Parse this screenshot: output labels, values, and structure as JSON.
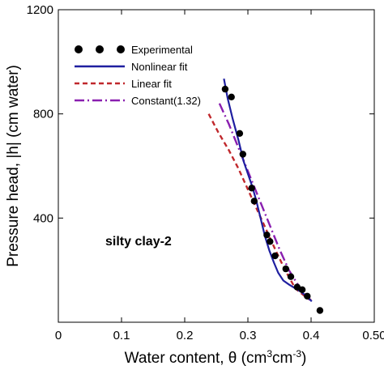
{
  "chart_data": {
    "type": "line",
    "title": "",
    "xlabel": "Water content, θ (cm3cm-3)",
    "xlabel_parts": {
      "base": "Water content, θ (cm",
      "sup1": "3",
      "mid": "cm",
      "sup2": "-3",
      "end": ")"
    },
    "ylabel": "Pressure head, |h| (cm water)",
    "xlim": [
      0,
      0.5
    ],
    "ylim": [
      0,
      1200
    ],
    "x_ticks": [
      0,
      0.1,
      0.2,
      0.3,
      0.4,
      0.5
    ],
    "x_tick_labels": [
      "0",
      "0.1",
      "0.2",
      "0.3",
      "0.4",
      "0.50"
    ],
    "y_ticks": [
      400,
      800,
      1200
    ],
    "y_tick_labels": [
      "400",
      "800",
      "1200"
    ],
    "annotation": "silty clay-2",
    "legend_placement": "top-left",
    "grid": false,
    "series": [
      {
        "name": "Experimental",
        "kind": "scatter",
        "color": "#000000",
        "x": [
          0.264,
          0.274,
          0.287,
          0.292,
          0.306,
          0.31,
          0.33,
          0.335,
          0.343,
          0.36,
          0.368,
          0.378,
          0.386,
          0.394,
          0.414
        ],
        "y": [
          895,
          865,
          725,
          645,
          515,
          465,
          335,
          310,
          255,
          205,
          175,
          135,
          125,
          100,
          45
        ]
      },
      {
        "name": "Nonlinear fit",
        "kind": "line",
        "color": "#1f1fa0",
        "dash": "solid",
        "x": [
          0.262,
          0.268,
          0.276,
          0.285,
          0.293,
          0.3,
          0.307,
          0.313,
          0.32,
          0.327,
          0.334,
          0.341,
          0.348,
          0.356,
          0.365,
          0.375,
          0.385,
          0.395,
          0.401
        ],
        "y": [
          935,
          860,
          780,
          700,
          620,
          570,
          520,
          470,
          400,
          330,
          275,
          230,
          190,
          160,
          145,
          130,
          115,
          95,
          80
        ]
      },
      {
        "name": "Linear fit",
        "kind": "line",
        "color": "#c0282c",
        "dash": "short",
        "x": [
          0.238,
          0.253,
          0.27,
          0.285,
          0.3,
          0.315,
          0.33,
          0.345,
          0.36,
          0.375,
          0.39,
          0.4
        ],
        "y": [
          800,
          730,
          660,
          590,
          510,
          430,
          350,
          270,
          195,
          130,
          100,
          85
        ]
      },
      {
        "name": "Constant(1.32)",
        "kind": "line",
        "color": "#8a1fb0",
        "dash": "dashdot",
        "x": [
          0.255,
          0.27,
          0.29,
          0.31,
          0.33,
          0.35,
          0.365,
          0.375,
          0.383,
          0.39,
          0.398
        ],
        "y": [
          840,
          760,
          640,
          520,
          400,
          280,
          200,
          160,
          130,
          110,
          85
        ]
      }
    ]
  }
}
